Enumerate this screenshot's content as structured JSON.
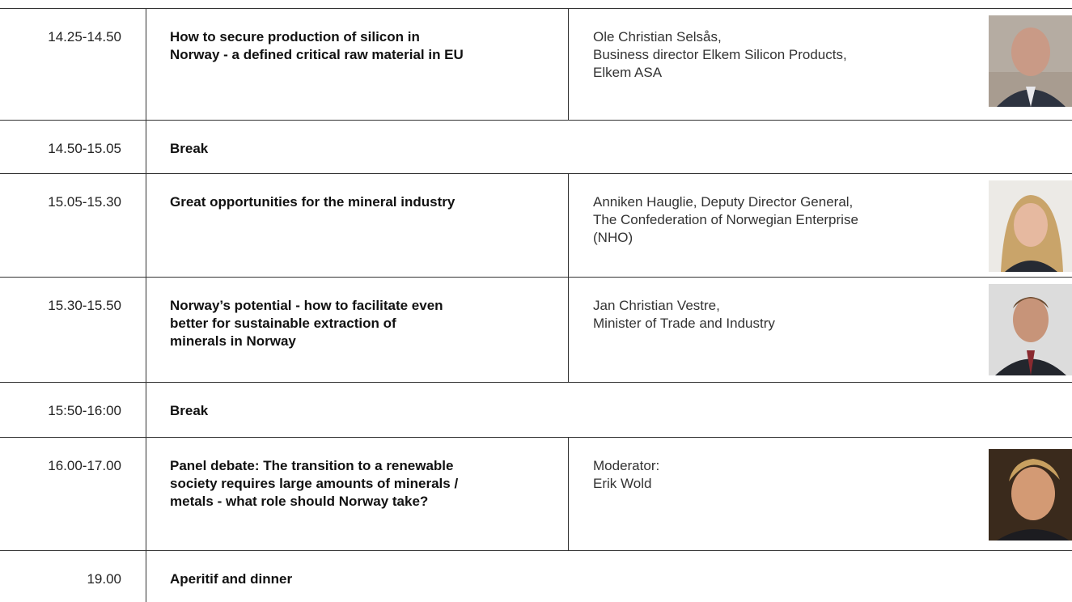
{
  "agenda": {
    "rows": [
      {
        "time": "14.25-14.50",
        "title": [
          "How to secure production of silicon in",
          "Norway - a defined critical raw material in EU"
        ],
        "speaker": [
          "Ole Christian Selsås,",
          "Business director Elkem Silicon Products,",
          "Elkem ASA"
        ]
      },
      {
        "time": "14.50-15.05",
        "title": [
          "Break"
        ]
      },
      {
        "time": "15.05-15.30",
        "title": [
          "Great opportunities for the mineral industry"
        ],
        "speaker": [
          "Anniken Hauglie, Deputy Director General,",
          "The Confederation of Norwegian Enterprise",
          "(NHO)"
        ]
      },
      {
        "time": "15.30-15.50",
        "title": [
          "Norway’s potential - how to facilitate even",
          "better for sustainable extraction of",
          "minerals in Norway"
        ],
        "speaker": [
          "Jan Christian Vestre,",
          "Minister of Trade and Industry"
        ]
      },
      {
        "time": "15:50-16:00",
        "title": [
          "Break"
        ]
      },
      {
        "time": "16.00-17.00",
        "title": [
          "Panel debate: The transition to a renewable",
          "society requires large amounts of minerals /",
          "metals - what role should Norway take?"
        ],
        "speaker": [
          "Moderator:",
          "Erik Wold"
        ]
      },
      {
        "time": "19.00",
        "title": [
          "Aperitif and dinner"
        ]
      }
    ]
  }
}
